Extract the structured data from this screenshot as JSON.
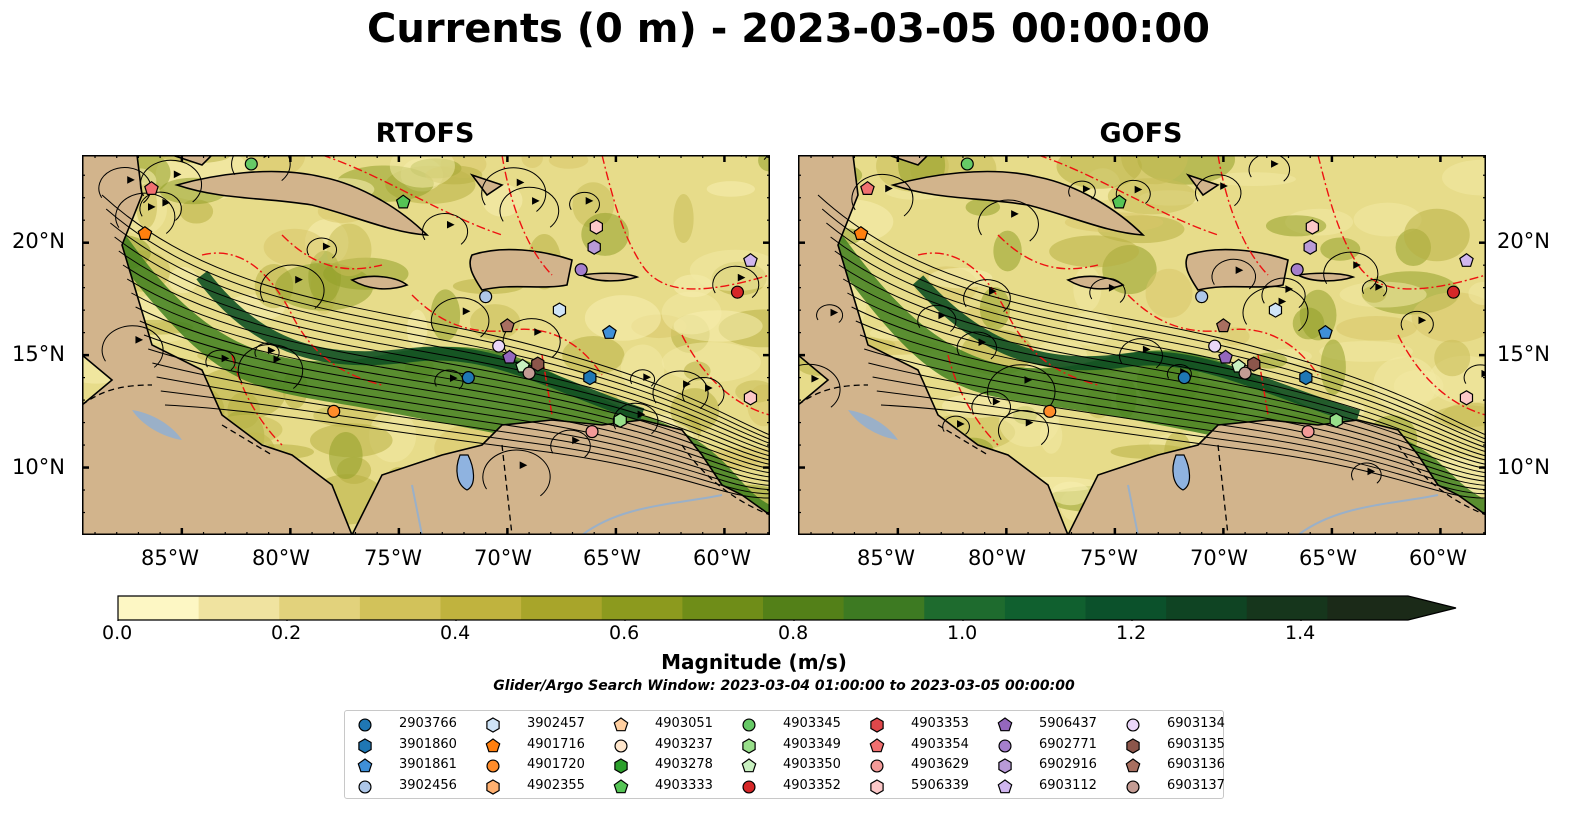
{
  "title": "Currents (0 m) - 2023-03-05 00:00:00",
  "panels": [
    {
      "title": "RTOFS"
    },
    {
      "title": "GOFS"
    }
  ],
  "axes": {
    "lon_ticks": [
      "85°W",
      "80°W",
      "75°W",
      "70°W",
      "65°W",
      "60°W"
    ],
    "lat_ticks": [
      "20°N",
      "15°N",
      "10°N"
    ]
  },
  "colorbar": {
    "label": "Magnitude (m/s)",
    "ticks": [
      "0.0",
      "0.2",
      "0.4",
      "0.6",
      "0.8",
      "1.0",
      "1.2",
      "1.4"
    ],
    "colors": [
      "#fdf7c4",
      "#f0e3a0",
      "#e2d27c",
      "#d2c25a",
      "#c0b33e",
      "#a8a52a",
      "#8c9a1e",
      "#6f8d18",
      "#538018",
      "#3d7a22",
      "#1e6b2e",
      "#10602f",
      "#0b512b",
      "#0f4423",
      "#16361c",
      "#1b2a18"
    ]
  },
  "search_window": "Glider/Argo Search Window: 2023-03-04 01:00:00 to 2023-03-05 00:00:00",
  "legend": [
    {
      "id": "2903766",
      "shape": "circle",
      "color": "#1f77b4"
    },
    {
      "id": "3901860",
      "shape": "hexagon",
      "color": "#1f77b4"
    },
    {
      "id": "3901861",
      "shape": "pentagon",
      "color": "#3f8fd8"
    },
    {
      "id": "3902456",
      "shape": "circle",
      "color": "#aec7e8"
    },
    {
      "id": "3902457",
      "shape": "hexagon",
      "color": "#cfe4f7"
    },
    {
      "id": "4901716",
      "shape": "pentagon",
      "color": "#ff7f0e"
    },
    {
      "id": "4901720",
      "shape": "circle",
      "color": "#ff8c2a"
    },
    {
      "id": "4902355",
      "shape": "hexagon",
      "color": "#ffb070"
    },
    {
      "id": "4903051",
      "shape": "pentagon",
      "color": "#ffcfa0"
    },
    {
      "id": "4903237",
      "shape": "circle",
      "color": "#ffe6cc"
    },
    {
      "id": "4903278",
      "shape": "hexagon",
      "color": "#2ca02c"
    },
    {
      "id": "4903333",
      "shape": "pentagon",
      "color": "#55c455"
    },
    {
      "id": "4903345",
      "shape": "circle",
      "color": "#66c966"
    },
    {
      "id": "4903349",
      "shape": "hexagon",
      "color": "#98df8a"
    },
    {
      "id": "4903350",
      "shape": "pentagon",
      "color": "#c8f0c0"
    },
    {
      "id": "4903352",
      "shape": "circle",
      "color": "#d62728"
    },
    {
      "id": "4903353",
      "shape": "hexagon",
      "color": "#e0474a"
    },
    {
      "id": "4903354",
      "shape": "pentagon",
      "color": "#f07070"
    },
    {
      "id": "4903629",
      "shape": "circle",
      "color": "#f29a98"
    },
    {
      "id": "5906339",
      "shape": "hexagon",
      "color": "#fcc8c8"
    },
    {
      "id": "5906437",
      "shape": "pentagon",
      "color": "#9467bd"
    },
    {
      "id": "6902771",
      "shape": "circle",
      "color": "#a57fcc"
    },
    {
      "id": "6902916",
      "shape": "hexagon",
      "color": "#b99ad8"
    },
    {
      "id": "6903112",
      "shape": "pentagon",
      "color": "#d0b6ee"
    },
    {
      "id": "6903134",
      "shape": "circle",
      "color": "#ead6f8"
    },
    {
      "id": "6903135",
      "shape": "hexagon",
      "color": "#8c564b"
    },
    {
      "id": "6903136",
      "shape": "pentagon",
      "color": "#a86f60"
    },
    {
      "id": "6903137",
      "shape": "circle",
      "color": "#c49c94"
    }
  ],
  "floats_on_map": [
    {
      "id": "4903354",
      "lon": -86.4,
      "lat": 22.4
    },
    {
      "id": "4901716",
      "lon": -86.7,
      "lat": 20.4
    },
    {
      "id": "4903345",
      "lon": -81.8,
      "lat": 23.5
    },
    {
      "id": "4903333",
      "lon": -74.8,
      "lat": 21.8
    },
    {
      "id": "5906339",
      "lon": -65.9,
      "lat": 20.7
    },
    {
      "id": "6902916",
      "lon": -66.0,
      "lat": 19.8
    },
    {
      "id": "6902771",
      "lon": -66.6,
      "lat": 18.8
    },
    {
      "id": "6903112",
      "lon": -58.8,
      "lat": 19.2
    },
    {
      "id": "4903352",
      "lon": -59.4,
      "lat": 17.8
    },
    {
      "id": "3902456",
      "lon": -71.0,
      "lat": 17.6
    },
    {
      "id": "3902457",
      "lon": -67.6,
      "lat": 17.0
    },
    {
      "id": "3901861",
      "lon": -65.3,
      "lat": 16.0
    },
    {
      "id": "6903136",
      "lon": -70.0,
      "lat": 16.3
    },
    {
      "id": "6903134",
      "lon": -70.4,
      "lat": 15.4
    },
    {
      "id": "5906437",
      "lon": -69.9,
      "lat": 14.9
    },
    {
      "id": "4903350",
      "lon": -69.3,
      "lat": 14.5
    },
    {
      "id": "6903137",
      "lon": -69.0,
      "lat": 14.2
    },
    {
      "id": "6903135",
      "lon": -68.6,
      "lat": 14.6
    },
    {
      "id": "2903766",
      "lon": -71.8,
      "lat": 14.0
    },
    {
      "id": "3901860",
      "lon": -66.2,
      "lat": 14.0
    },
    {
      "id": "4903349",
      "lon": -64.8,
      "lat": 12.1
    },
    {
      "id": "4903629",
      "lon": -66.1,
      "lat": 11.6
    },
    {
      "id": "4901720",
      "lon": -78.0,
      "lat": 12.5
    },
    {
      "id": "6903137b",
      "lon": -58.8,
      "lat": 13.1
    }
  ]
}
